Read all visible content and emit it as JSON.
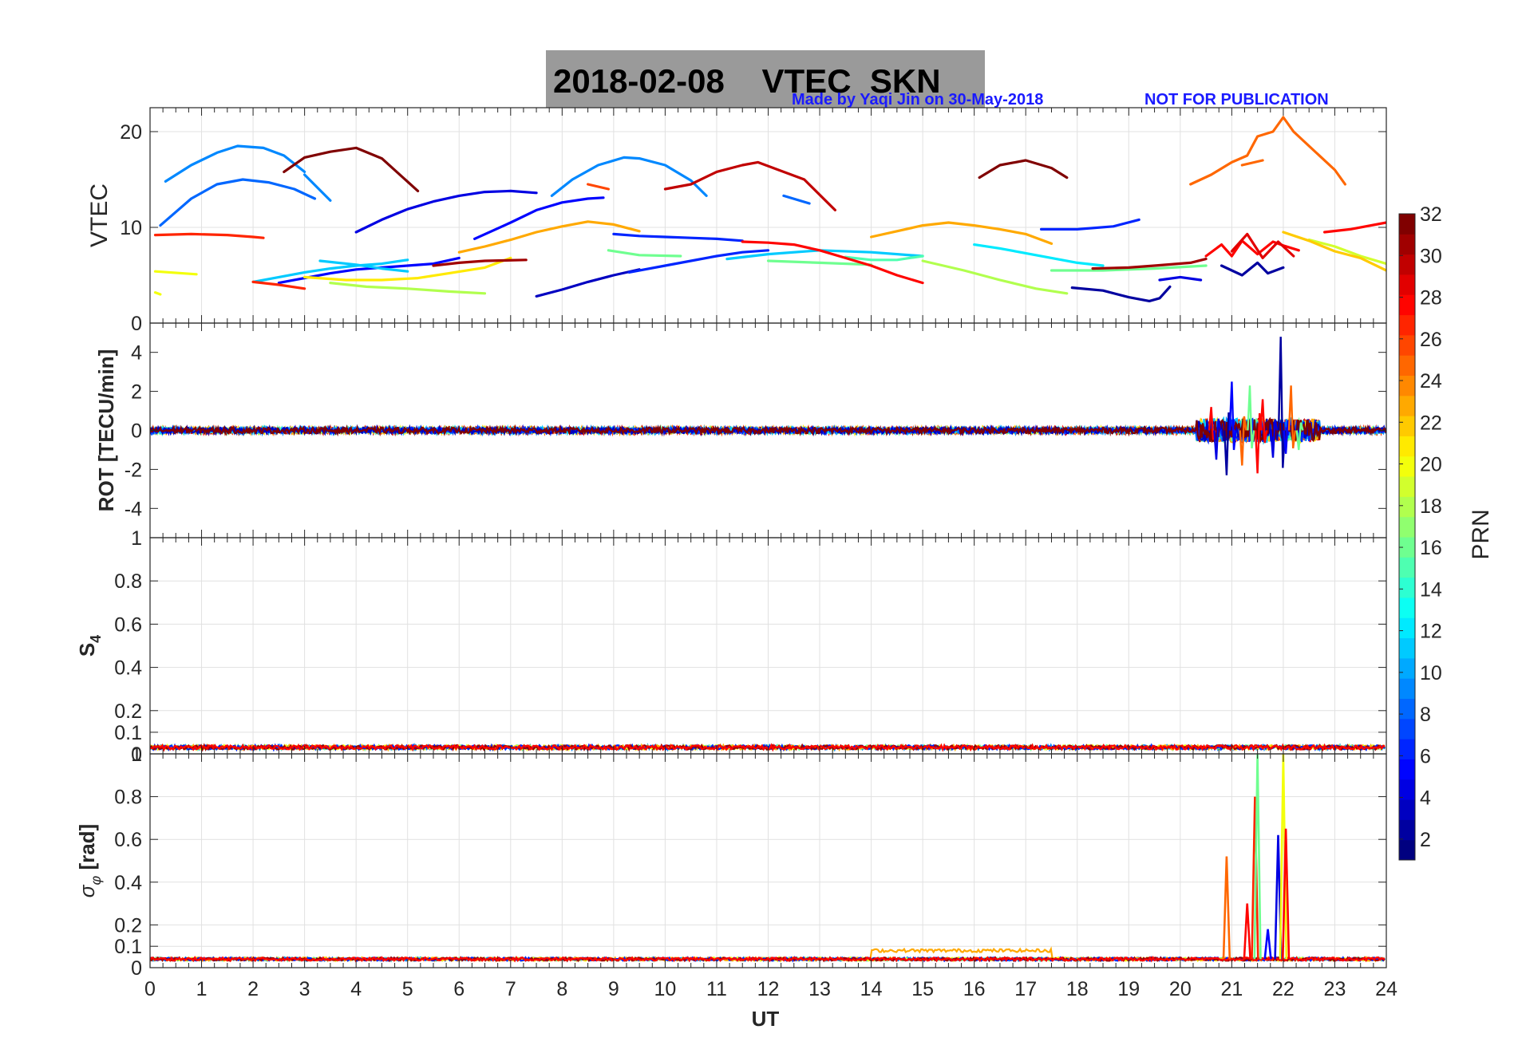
{
  "title": "2018-02-08    VTEC  SKN",
  "credit": "Made by Yaqi Jin on 30-May-2018",
  "notice": "NOT FOR PUBLICATION",
  "colors": {
    "title_bg": "#9a9a9a",
    "note": "#1a1aff",
    "grid": "#e1e1e1",
    "axis": "#262626"
  },
  "chart_data": [
    {
      "type": "line",
      "panel": "vtec",
      "ylabel": "VTEC",
      "xlabel": "",
      "xlim": [
        0,
        24
      ],
      "ylim": [
        0,
        22.5
      ],
      "yticks": [
        0,
        10,
        20
      ],
      "grid": true,
      "series": [
        {
          "name": "PRN 3",
          "prn": 3,
          "x": [
            7.5,
            8,
            8.5,
            9,
            9.5
          ],
          "y": [
            2.8,
            3.5,
            4.3,
            5,
            5.6
          ]
        },
        {
          "name": "PRN 2",
          "prn": 2,
          "x": [
            17.9,
            18.5,
            19,
            19.4,
            19.6,
            19.8
          ],
          "y": [
            3.7,
            3.4,
            2.7,
            2.3,
            2.6,
            3.8
          ]
        },
        {
          "name": "PRN 4",
          "prn": 4,
          "x": [
            19.6,
            20,
            20.4
          ],
          "y": [
            4.5,
            4.8,
            4.5
          ]
        },
        {
          "name": "PRN 5",
          "prn": 5,
          "x": [
            2.5,
            3,
            3.5,
            4,
            4.5,
            5,
            5.5,
            6
          ],
          "y": [
            4.2,
            4.7,
            5.2,
            5.6,
            5.8,
            6.0,
            6.2,
            6.8
          ]
        },
        {
          "name": "PRN 4",
          "prn": 4,
          "x": [
            4,
            4.5,
            5,
            5.5,
            6,
            6.5,
            7,
            7.5
          ],
          "y": [
            9.5,
            10.8,
            11.9,
            12.7,
            13.3,
            13.7,
            13.8,
            13.6
          ]
        },
        {
          "name": "PRN 5",
          "prn": 5,
          "x": [
            6.3,
            7,
            7.5,
            8,
            8.5,
            8.8
          ],
          "y": [
            8.8,
            10.5,
            11.8,
            12.6,
            13,
            13.1
          ]
        },
        {
          "name": "PRN 6",
          "prn": 6,
          "x": [
            9,
            9.5,
            10,
            10.5,
            11,
            11.5
          ],
          "y": [
            9.3,
            9.1,
            9,
            8.9,
            8.8,
            8.6
          ]
        },
        {
          "name": "PRN 6",
          "prn": 6,
          "x": [
            9.3,
            10,
            10.5,
            11,
            11.5,
            12
          ],
          "y": [
            5.3,
            6,
            6.5,
            7,
            7.4,
            7.6
          ]
        },
        {
          "name": "PRN 8",
          "prn": 8,
          "x": [
            0.2,
            0.8,
            1.3,
            1.8,
            2.3,
            2.8,
            3.2
          ],
          "y": [
            10.2,
            13,
            14.5,
            15,
            14.7,
            14,
            13
          ]
        },
        {
          "name": "PRN 9",
          "prn": 9,
          "x": [
            0.3,
            0.8,
            1.3,
            1.7,
            2.2,
            2.6,
            3
          ],
          "y": [
            14.8,
            16.5,
            17.8,
            18.5,
            18.3,
            17.5,
            15.8
          ]
        },
        {
          "name": "PRN 9",
          "prn": 9,
          "x": [
            3,
            3.5
          ],
          "y": [
            15.5,
            12.8
          ]
        },
        {
          "name": "PRN 9",
          "prn": 9,
          "x": [
            7.8,
            8.2,
            8.7,
            9.2,
            9.5,
            10,
            10.5,
            10.8
          ],
          "y": [
            13.3,
            15,
            16.5,
            17.3,
            17.2,
            16.5,
            14.9,
            13.3
          ]
        },
        {
          "name": "PRN 8",
          "prn": 8,
          "x": [
            12.3,
            12.8
          ],
          "y": [
            13.3,
            12.5
          ]
        },
        {
          "name": "PRN 6",
          "prn": 6,
          "x": [
            17.3,
            18,
            18.7,
            19.2
          ],
          "y": [
            9.8,
            9.8,
            10.1,
            10.8
          ]
        },
        {
          "name": "PRN 11",
          "prn": 11,
          "x": [
            2,
            2.5,
            3,
            3.5,
            4,
            4.5,
            5
          ],
          "y": [
            4.3,
            4.8,
            5.3,
            5.7,
            6,
            6.2,
            6.6
          ]
        },
        {
          "name": "PRN 11",
          "prn": 11,
          "x": [
            3.3,
            4,
            4.5,
            5
          ],
          "y": [
            6.5,
            6.1,
            5.7,
            5.4
          ]
        },
        {
          "name": "PRN 11",
          "prn": 11,
          "x": [
            11.2,
            12,
            13,
            14,
            15
          ],
          "y": [
            6.7,
            7.2,
            7.6,
            7.4,
            7
          ]
        },
        {
          "name": "PRN 12",
          "prn": 12,
          "x": [
            16,
            16.5,
            17,
            17.5,
            18,
            18.5
          ],
          "y": [
            8.2,
            7.8,
            7.3,
            6.8,
            6.3,
            6
          ]
        },
        {
          "name": "PRN 15",
          "prn": 15,
          "x": [
            13.5,
            14,
            14.5,
            15
          ],
          "y": [
            6.9,
            6.6,
            6.6,
            7
          ]
        },
        {
          "name": "PRN 16",
          "prn": 16,
          "x": [
            8.9,
            9.5,
            10.3
          ],
          "y": [
            7.6,
            7.1,
            7.0
          ]
        },
        {
          "name": "PRN 16",
          "prn": 16,
          "x": [
            12,
            13,
            14
          ],
          "y": [
            6.5,
            6.3,
            6.1
          ]
        },
        {
          "name": "PRN 16",
          "prn": 16,
          "x": [
            17.5,
            18.5,
            19.5,
            20.5
          ],
          "y": [
            5.5,
            5.5,
            5.7,
            6
          ]
        },
        {
          "name": "PRN 18",
          "prn": 18,
          "x": [
            3.5,
            4.2,
            5,
            5.8,
            6.5
          ],
          "y": [
            4.2,
            3.8,
            3.6,
            3.3,
            3.1
          ]
        },
        {
          "name": "PRN 18",
          "prn": 18,
          "x": [
            15,
            15.8,
            16.5,
            17.2,
            17.8
          ],
          "y": [
            6.5,
            5.5,
            4.5,
            3.6,
            3.1
          ]
        },
        {
          "name": "PRN 19",
          "prn": 19,
          "x": [
            22.5,
            23,
            23.5,
            24
          ],
          "y": [
            8.7,
            8,
            7,
            6.2
          ]
        },
        {
          "name": "PRN 20",
          "prn": 20,
          "x": [
            0.1,
            0.9
          ],
          "y": [
            5.4,
            5.1
          ]
        },
        {
          "name": "PRN 20",
          "prn": 20,
          "x": [
            0.1,
            0.2
          ],
          "y": [
            3.2,
            3
          ]
        },
        {
          "name": "PRN 21",
          "prn": 21,
          "x": [
            3,
            3.8,
            4.5,
            5.2,
            5.8,
            6.5,
            7
          ],
          "y": [
            4.8,
            4.5,
            4.5,
            4.7,
            5.2,
            5.8,
            6.8
          ]
        },
        {
          "name": "PRN 23",
          "prn": 23,
          "x": [
            6,
            6.5,
            7,
            7.5,
            8,
            8.5,
            9,
            9.5
          ],
          "y": [
            7.4,
            8,
            8.7,
            9.5,
            10.1,
            10.6,
            10.3,
            9.6
          ]
        },
        {
          "name": "PRN 23",
          "prn": 23,
          "x": [
            14,
            14.5,
            15,
            15.5,
            16,
            16.5,
            17,
            17.5
          ],
          "y": [
            9,
            9.6,
            10.2,
            10.5,
            10.2,
            9.8,
            9.3,
            8.3
          ]
        },
        {
          "name": "PRN 22",
          "prn": 22,
          "x": [
            22,
            22.5,
            23,
            23.5,
            24
          ],
          "y": [
            9.5,
            8.6,
            7.5,
            6.8,
            5.5
          ]
        },
        {
          "name": "PRN 25",
          "prn": 25,
          "x": [
            20.2,
            20.6,
            21,
            21.3,
            21.5,
            21.8,
            22,
            22.2,
            22.6,
            23,
            23.2
          ],
          "y": [
            14.5,
            15.5,
            16.8,
            17.5,
            19.5,
            20,
            21.5,
            20,
            18,
            16,
            14.5
          ]
        },
        {
          "name": "PRN 25",
          "prn": 25,
          "x": [
            21.2,
            21.6
          ],
          "y": [
            16.5,
            17
          ]
        },
        {
          "name": "PRN 26",
          "prn": 26,
          "x": [
            8.5,
            8.9
          ],
          "y": [
            14.5,
            14
          ]
        },
        {
          "name": "PRN 27",
          "prn": 27,
          "x": [
            0.1,
            0.8,
            1.5,
            2,
            2.2
          ],
          "y": [
            9.2,
            9.3,
            9.2,
            9,
            8.9
          ]
        },
        {
          "name": "PRN 27",
          "prn": 27,
          "x": [
            2,
            2.5,
            3
          ],
          "y": [
            4.3,
            4,
            3.6
          ]
        },
        {
          "name": "PRN 28",
          "prn": 28,
          "x": [
            11.5,
            12,
            12.5,
            13,
            13.5,
            14,
            14.5,
            15
          ],
          "y": [
            8.5,
            8.4,
            8.2,
            7.6,
            6.8,
            6,
            5,
            4.2
          ]
        },
        {
          "name": "PRN 28",
          "prn": 28,
          "x": [
            22.8,
            23.3,
            24
          ],
          "y": [
            9.5,
            9.8,
            10.5
          ]
        },
        {
          "name": "PRN 28",
          "prn": 28,
          "x": [
            20.5,
            20.8,
            21,
            21.2,
            21.5,
            21.8,
            22,
            22.3
          ],
          "y": [
            7,
            8.2,
            7,
            8.6,
            7.2,
            8.5,
            8.1,
            7.6
          ]
        },
        {
          "name": "PRN 30",
          "prn": 30,
          "x": [
            10,
            10.5,
            11,
            11.5,
            11.8,
            12.2,
            12.7,
            13.3
          ],
          "y": [
            14,
            14.5,
            15.8,
            16.5,
            16.8,
            16,
            15,
            11.8
          ]
        },
        {
          "name": "PRN 31",
          "prn": 31,
          "x": [
            5.5,
            6,
            6.5,
            7.3
          ],
          "y": [
            6,
            6.3,
            6.5,
            6.6
          ]
        },
        {
          "name": "PRN 31",
          "prn": 31,
          "x": [
            18.3,
            19,
            19.5,
            20.2,
            20.5
          ],
          "y": [
            5.7,
            5.8,
            6,
            6.3,
            6.7
          ]
        },
        {
          "name": "PRN 32",
          "prn": 32,
          "x": [
            2.6,
            3,
            3.5,
            4,
            4.5,
            5.2
          ],
          "y": [
            15.8,
            17.3,
            17.9,
            18.3,
            17.2,
            13.8
          ]
        },
        {
          "name": "PRN 32",
          "prn": 32,
          "x": [
            16.1,
            16.5,
            17,
            17.5,
            17.8
          ],
          "y": [
            15.2,
            16.5,
            17,
            16.2,
            15.2
          ]
        },
        {
          "name": "PRN 2",
          "prn": 2,
          "x": [
            20.8,
            21.2,
            21.5,
            21.7,
            22
          ],
          "y": [
            6,
            5,
            6.3,
            5.2,
            5.8
          ]
        },
        {
          "name": "PRN 29",
          "prn": 29,
          "x": [
            21,
            21.3,
            21.6,
            21.9,
            22.2
          ],
          "y": [
            7.5,
            9.3,
            6.8,
            8.5,
            7
          ]
        }
      ]
    },
    {
      "type": "line",
      "panel": "rot",
      "ylabel": "ROT [TECU/min]",
      "xlim": [
        0,
        24
      ],
      "ylim": [
        -5.5,
        5.5
      ],
      "yticks": [
        -4,
        -2,
        0,
        2,
        4
      ],
      "grid": false,
      "baseline_noise_amplitude": 0.15,
      "disturbance_window": [
        20.3,
        22.7
      ],
      "spikes": [
        {
          "x": 20.6,
          "y": 1.2
        },
        {
          "x": 20.7,
          "y": -1.5
        },
        {
          "x": 20.9,
          "y": -2.3
        },
        {
          "x": 21.0,
          "y": 2.5
        },
        {
          "x": 21.2,
          "y": -1.8
        },
        {
          "x": 21.35,
          "y": 2.3
        },
        {
          "x": 21.5,
          "y": -2.2
        },
        {
          "x": 21.6,
          "y": 1.6
        },
        {
          "x": 21.8,
          "y": -1.4
        },
        {
          "x": 21.95,
          "y": 4.8
        },
        {
          "x": 22.05,
          "y": -1.2
        },
        {
          "x": 22.15,
          "y": 2.3
        },
        {
          "x": 22.3,
          "y": -1.0
        }
      ]
    },
    {
      "type": "line",
      "panel": "s4",
      "ylabel": "S4",
      "xlim": [
        0,
        24
      ],
      "ylim": [
        0,
        1
      ],
      "yticks": [
        0,
        0.1,
        0.2,
        0.4,
        0.6,
        0.8,
        1
      ],
      "grid": true,
      "baseline_level": 0.03,
      "baseline_noise_amplitude": 0.02
    },
    {
      "type": "line",
      "panel": "sigma_phi",
      "ylabel": "σφ [rad]",
      "xlabel": "UT",
      "xlim": [
        0,
        24
      ],
      "ylim": [
        0,
        1
      ],
      "yticks": [
        0,
        0.1,
        0.2,
        0.4,
        0.6,
        0.8,
        1
      ],
      "xticks": [
        0,
        1,
        2,
        3,
        4,
        5,
        6,
        7,
        8,
        9,
        10,
        11,
        12,
        13,
        14,
        15,
        16,
        17,
        18,
        19,
        20,
        21,
        22,
        23,
        24
      ],
      "grid": true,
      "baseline_level": 0.04,
      "elevated_segment": {
        "x": [
          14,
          17.5
        ],
        "level": 0.08
      },
      "spikes": [
        {
          "x": 20.9,
          "y": 0.52,
          "prn": 25
        },
        {
          "x": 21.3,
          "y": 0.3,
          "prn": 28
        },
        {
          "x": 21.45,
          "y": 0.8,
          "prn": 27
        },
        {
          "x": 21.5,
          "y": 1.0,
          "prn": 16
        },
        {
          "x": 21.7,
          "y": 0.18,
          "prn": 5
        },
        {
          "x": 21.9,
          "y": 0.62,
          "prn": 4
        },
        {
          "x": 22.0,
          "y": 1.0,
          "prn": 20
        },
        {
          "x": 22.05,
          "y": 0.65,
          "prn": 28
        }
      ]
    }
  ],
  "colorbar": {
    "label": "PRN",
    "min": 1,
    "max": 32,
    "ticks": [
      2,
      4,
      6,
      8,
      10,
      12,
      14,
      16,
      18,
      20,
      22,
      24,
      26,
      28,
      30,
      32
    ]
  }
}
